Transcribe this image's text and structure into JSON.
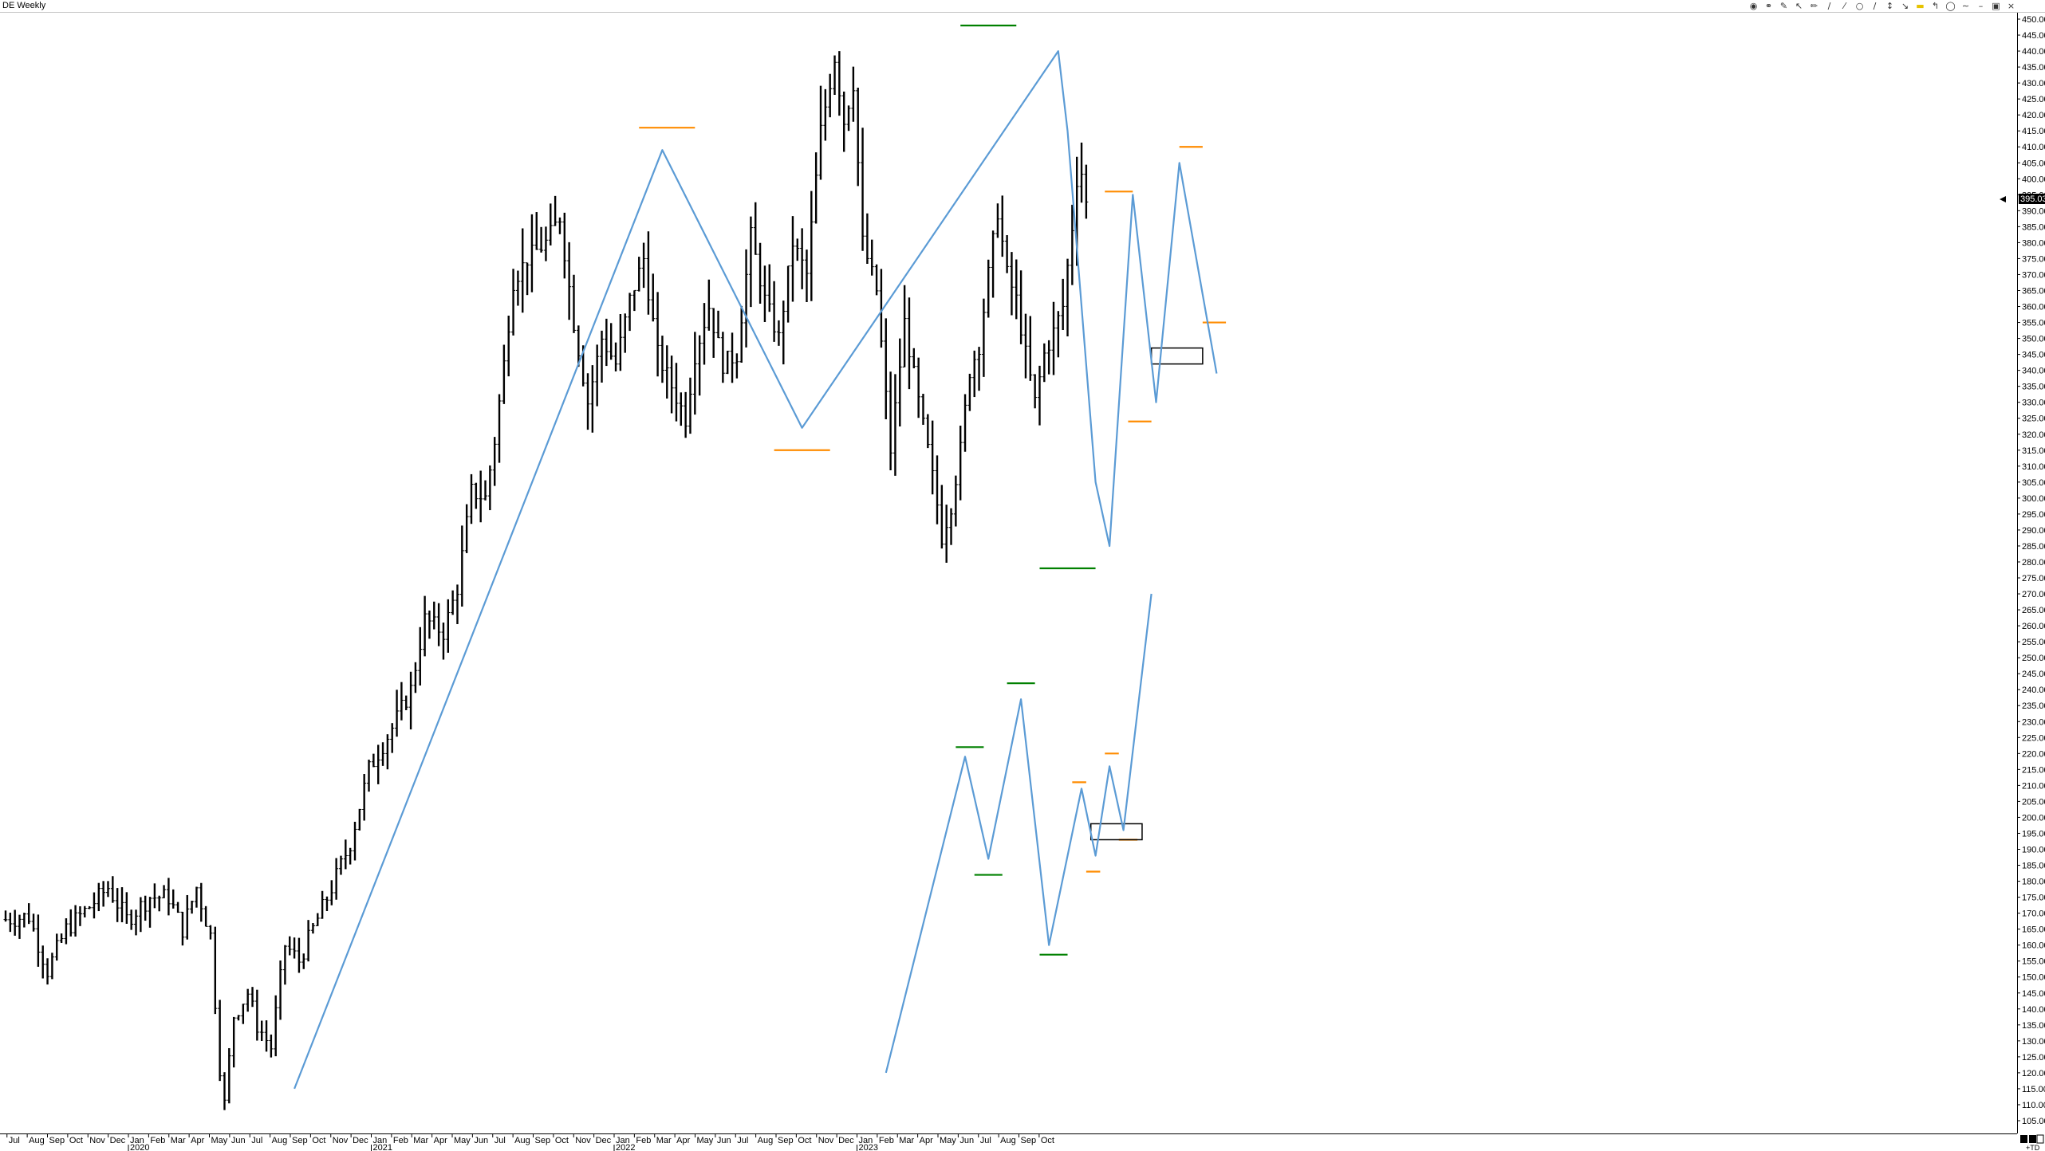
{
  "window": {
    "title": "DE Weekly"
  },
  "toolbar": {
    "icons": [
      "palette-icon",
      "globe-icon",
      "draw-icon",
      "cursor-icon",
      "pencil-icon",
      "fan-lines-icon",
      "channel-icon",
      "circle-icon",
      "channel-lines-icon",
      "scale-icon",
      "ray-line-icon",
      "highlighter-icon",
      "fork-icon",
      "lock-icon",
      "trend-icon",
      "minimize-icon",
      "restore-icon",
      "close-icon"
    ]
  },
  "price_axis": {
    "last_price_label": "395.03",
    "corner_label": "+TD"
  },
  "chart_data": {
    "type": "ohlc",
    "title": "DE Weekly",
    "ylim": [
      102,
      451
    ],
    "tick_step": 5,
    "tick_format": "2 decimals",
    "x_ticks": [
      {
        "label": "Jul"
      },
      {
        "label": "Aug"
      },
      {
        "label": "Sep"
      },
      {
        "label": "Oct"
      },
      {
        "label": "Nov"
      },
      {
        "label": "Dec"
      },
      {
        "label": "Jan",
        "year": "2020"
      },
      {
        "label": "Feb"
      },
      {
        "label": "Mar"
      },
      {
        "label": "Apr"
      },
      {
        "label": "May"
      },
      {
        "label": "Jun"
      },
      {
        "label": "Jul"
      },
      {
        "label": "Aug"
      },
      {
        "label": "Sep"
      },
      {
        "label": "Oct"
      },
      {
        "label": "Nov"
      },
      {
        "label": "Dec"
      },
      {
        "label": "Jan",
        "year": "2021"
      },
      {
        "label": "Feb"
      },
      {
        "label": "Mar"
      },
      {
        "label": "Apr"
      },
      {
        "label": "May"
      },
      {
        "label": "Jun"
      },
      {
        "label": "Jul"
      },
      {
        "label": "Aug"
      },
      {
        "label": "Sep"
      },
      {
        "label": "Oct"
      },
      {
        "label": "Nov"
      },
      {
        "label": "Dec"
      },
      {
        "label": "Jan",
        "year": "2022"
      },
      {
        "label": "Feb"
      },
      {
        "label": "Mar"
      },
      {
        "label": "Apr"
      },
      {
        "label": "May"
      },
      {
        "label": "Jun"
      },
      {
        "label": "Jul"
      },
      {
        "label": "Aug"
      },
      {
        "label": "Sep"
      },
      {
        "label": "Oct"
      },
      {
        "label": "Nov"
      },
      {
        "label": "Dec"
      },
      {
        "label": "Jan",
        "year": "2023"
      },
      {
        "label": "Feb"
      },
      {
        "label": "Mar"
      },
      {
        "label": "Apr"
      },
      {
        "label": "May"
      },
      {
        "label": "Jun"
      },
      {
        "label": "Jul"
      },
      {
        "label": "Aug"
      },
      {
        "label": "Sep"
      },
      {
        "label": "Oct"
      }
    ],
    "price_anchors": [
      {
        "t": 0,
        "p": 168
      },
      {
        "t": 5,
        "p": 169
      },
      {
        "t": 9,
        "p": 152
      },
      {
        "t": 13,
        "p": 165
      },
      {
        "t": 18,
        "p": 172
      },
      {
        "t": 22,
        "p": 178
      },
      {
        "t": 26,
        "p": 168
      },
      {
        "t": 31,
        "p": 175
      },
      {
        "t": 35,
        "p": 175
      },
      {
        "t": 38,
        "p": 165
      },
      {
        "t": 41,
        "p": 178
      },
      {
        "t": 44,
        "p": 163
      },
      {
        "t": 46,
        "p": 122
      },
      {
        "t": 47,
        "p": 110
      },
      {
        "t": 49,
        "p": 138
      },
      {
        "t": 52,
        "p": 145
      },
      {
        "t": 54,
        "p": 135
      },
      {
        "t": 57,
        "p": 128
      },
      {
        "t": 60,
        "p": 160
      },
      {
        "t": 63,
        "p": 155
      },
      {
        "t": 66,
        "p": 165
      },
      {
        "t": 70,
        "p": 178
      },
      {
        "t": 74,
        "p": 192
      },
      {
        "t": 78,
        "p": 215
      },
      {
        "t": 83,
        "p": 228
      },
      {
        "t": 87,
        "p": 240
      },
      {
        "t": 90,
        "p": 262
      },
      {
        "t": 94,
        "p": 258
      },
      {
        "t": 97,
        "p": 272
      },
      {
        "t": 100,
        "p": 302
      },
      {
        "t": 103,
        "p": 300
      },
      {
        "t": 105,
        "p": 318
      },
      {
        "t": 107,
        "p": 342
      },
      {
        "t": 109,
        "p": 368
      },
      {
        "t": 112,
        "p": 375
      },
      {
        "t": 116,
        "p": 380
      },
      {
        "t": 119,
        "p": 388
      },
      {
        "t": 122,
        "p": 355
      },
      {
        "t": 125,
        "p": 330
      },
      {
        "t": 128,
        "p": 350
      },
      {
        "t": 131,
        "p": 342
      },
      {
        "t": 134,
        "p": 362
      },
      {
        "t": 137,
        "p": 375
      },
      {
        "t": 140,
        "p": 345
      },
      {
        "t": 143,
        "p": 335
      },
      {
        "t": 146,
        "p": 325
      },
      {
        "t": 148,
        "p": 345
      },
      {
        "t": 151,
        "p": 360
      },
      {
        "t": 154,
        "p": 342
      },
      {
        "t": 157,
        "p": 345
      },
      {
        "t": 160,
        "p": 382
      },
      {
        "t": 163,
        "p": 362
      },
      {
        "t": 166,
        "p": 350
      },
      {
        "t": 169,
        "p": 380
      },
      {
        "t": 172,
        "p": 370
      },
      {
        "t": 175,
        "p": 415
      },
      {
        "t": 178,
        "p": 438
      },
      {
        "t": 180,
        "p": 418
      },
      {
        "t": 182,
        "p": 430
      },
      {
        "t": 184,
        "p": 380
      },
      {
        "t": 187,
        "p": 365
      },
      {
        "t": 190,
        "p": 315
      },
      {
        "t": 193,
        "p": 355
      },
      {
        "t": 196,
        "p": 330
      },
      {
        "t": 198,
        "p": 315
      },
      {
        "t": 200,
        "p": 298
      },
      {
        "t": 201,
        "p": 288
      },
      {
        "t": 203,
        "p": 298
      },
      {
        "t": 205,
        "p": 315
      },
      {
        "t": 207,
        "p": 340
      },
      {
        "t": 209,
        "p": 348
      },
      {
        "t": 211,
        "p": 370
      },
      {
        "t": 213,
        "p": 390
      },
      {
        "t": 215,
        "p": 370
      },
      {
        "t": 217,
        "p": 362
      },
      {
        "t": 219,
        "p": 345
      },
      {
        "t": 221,
        "p": 330
      },
      {
        "t": 223,
        "p": 345
      },
      {
        "t": 225,
        "p": 352
      },
      {
        "t": 227,
        "p": 360
      },
      {
        "t": 229,
        "p": 385
      },
      {
        "t": 230,
        "p": 400
      },
      {
        "t": 231,
        "p": 402
      },
      {
        "t": 232,
        "p": 392
      }
    ],
    "series": [
      {
        "name": "",
        "kind": "upper-projection",
        "points": [
          {
            "t": 62,
            "p": 115
          },
          {
            "t": 141,
            "p": 409
          },
          {
            "t": 171,
            "p": 322
          },
          {
            "t": 226,
            "p": 440
          },
          {
            "t": 228,
            "p": 415
          },
          {
            "t": 234,
            "p": 305
          },
          {
            "t": 237,
            "p": 285
          },
          {
            "t": 242,
            "p": 395
          },
          {
            "t": 247,
            "p": 330
          },
          {
            "t": 252,
            "p": 405
          },
          {
            "t": 260,
            "p": 339
          }
        ]
      },
      {
        "name": "",
        "kind": "lower-projection",
        "points": [
          {
            "t": 189,
            "p": 120
          },
          {
            "t": 206,
            "p": 219
          },
          {
            "t": 211,
            "p": 187
          },
          {
            "t": 218,
            "p": 237
          },
          {
            "t": 224,
            "p": 160
          },
          {
            "t": 231,
            "p": 209
          },
          {
            "t": 234,
            "p": 188
          },
          {
            "t": 237,
            "p": 216
          },
          {
            "t": 240,
            "p": 196
          },
          {
            "t": 246,
            "p": 270
          }
        ]
      }
    ],
    "levels": [
      {
        "color": "#ff8c00",
        "price": 416,
        "t_from": 136,
        "t_to": 148
      },
      {
        "color": "#ff8c00",
        "price": 315,
        "t_from": 165,
        "t_to": 177
      },
      {
        "color": "#008000",
        "price": 448,
        "t_from": 205,
        "t_to": 217
      },
      {
        "color": "#008000",
        "price": 278,
        "t_from": 222,
        "t_to": 234
      },
      {
        "color": "#ff8c00",
        "price": 396,
        "t_from": 236,
        "t_to": 242
      },
      {
        "color": "#ff8c00",
        "price": 324,
        "t_from": 241,
        "t_to": 246
      },
      {
        "color": "#ff8c00",
        "price": 410,
        "t_from": 252,
        "t_to": 257
      },
      {
        "color": "#ff8c00",
        "price": 355,
        "t_from": 257,
        "t_to": 262
      },
      {
        "color": "#008000",
        "price": 222,
        "t_from": 204,
        "t_to": 210
      },
      {
        "color": "#008000",
        "price": 182,
        "t_from": 208,
        "t_to": 214
      },
      {
        "color": "#008000",
        "price": 242,
        "t_from": 215,
        "t_to": 221
      },
      {
        "color": "#008000",
        "price": 157,
        "t_from": 222,
        "t_to": 228
      },
      {
        "color": "#ff8c00",
        "price": 211,
        "t_from": 229,
        "t_to": 232
      },
      {
        "color": "#ff8c00",
        "price": 183,
        "t_from": 232,
        "t_to": 235
      },
      {
        "color": "#ff8c00",
        "price": 220,
        "t_from": 236,
        "t_to": 239
      },
      {
        "color": "#ff8c00",
        "price": 193,
        "t_from": 239,
        "t_to": 243
      }
    ],
    "boxes": [
      {
        "t_from": 246,
        "t_to": 257,
        "p_top": 347,
        "p_bottom": 342
      },
      {
        "t_from": 233,
        "t_to": 244,
        "p_top": 198,
        "p_bottom": 193
      }
    ],
    "colors": {
      "bars": "#000000",
      "projection": "#5b9bd5",
      "level_orange": "#ff8c00",
      "level_green": "#008000"
    }
  }
}
